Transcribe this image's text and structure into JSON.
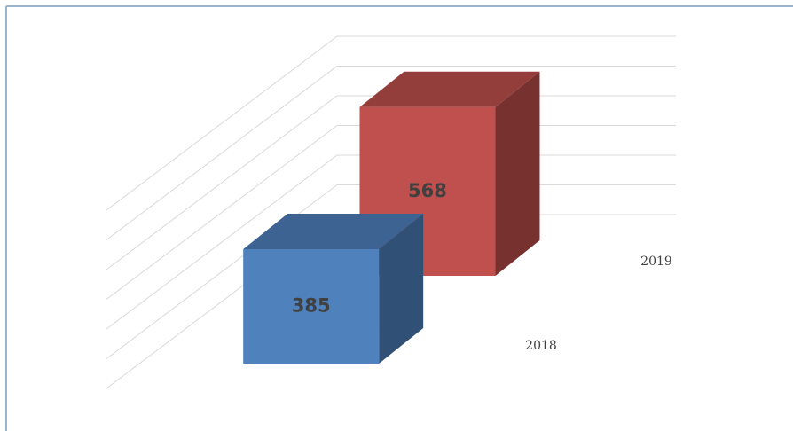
{
  "chart_data": {
    "type": "bar",
    "categories": [
      "2018",
      "2019"
    ],
    "values": [
      385,
      568
    ],
    "colors": [
      "#4f81bd",
      "#c0504d"
    ],
    "ylim": [
      0,
      600
    ],
    "yticks": [
      0,
      100,
      200,
      300,
      400,
      500,
      600
    ],
    "grid": true
  }
}
